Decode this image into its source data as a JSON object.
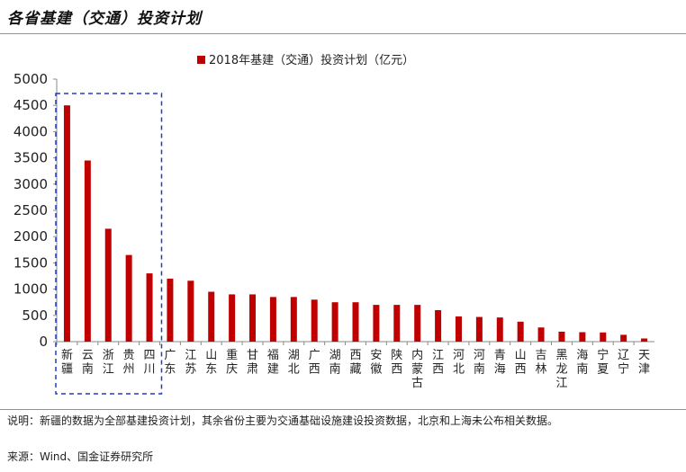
{
  "header": {
    "title": "各省基建（交通）投资计划"
  },
  "notes": {
    "explanation": "说明：新疆的数据为全部基建投资计划，其余省份主要为交通基础设施建设投资数据，北京和上海未公布相关数据。",
    "source": "来源：Wind、国金证券研究所"
  },
  "colors": {
    "bar": "#c00000",
    "highlight_box": "#1f3fbf",
    "axis": "#888888",
    "rule": "#5aa3d6"
  },
  "chart_data": {
    "type": "bar",
    "title": "",
    "xlabel": "",
    "ylabel": "",
    "ylim": [
      0,
      5000
    ],
    "yticks": [
      "0",
      "500",
      "1000",
      "1500",
      "2000",
      "2500",
      "3000",
      "3500",
      "4000",
      "4500",
      "5000"
    ],
    "legend": {
      "position": "top",
      "label": "2018年基建（交通）投资计划（亿元）"
    },
    "categories": [
      "新疆",
      "云南",
      "浙江",
      "贵州",
      "四川",
      "广东",
      "江苏",
      "山东",
      "重庆",
      "甘肃",
      "福建",
      "湖北",
      "广西",
      "湖南",
      "西藏",
      "安徽",
      "陕西",
      "内蒙古",
      "江西",
      "河北",
      "河南",
      "青海",
      "山西",
      "吉林",
      "黑龙江",
      "海南",
      "宁夏",
      "辽宁",
      "天津"
    ],
    "series": [
      {
        "name": "2018年基建（交通）投资计划（亿元）",
        "values": [
          4500,
          3450,
          2150,
          1650,
          1300,
          1200,
          1160,
          950,
          900,
          900,
          850,
          850,
          800,
          750,
          750,
          700,
          700,
          700,
          600,
          480,
          470,
          460,
          380,
          270,
          190,
          180,
          175,
          130,
          60
        ]
      }
    ],
    "highlight": {
      "from": "新疆",
      "to": "四川",
      "style": "dashed-box"
    }
  }
}
